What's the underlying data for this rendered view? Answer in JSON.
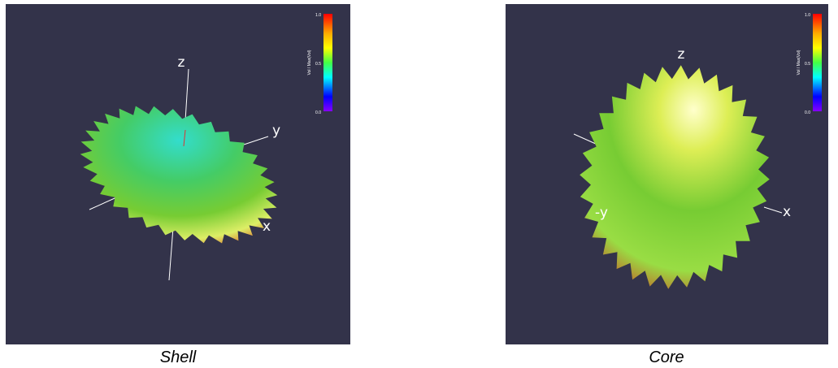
{
  "panels": [
    {
      "axis_labels": [
        "z",
        "y",
        "x"
      ],
      "colorbar": {
        "label": "Vol / Max(Vol)",
        "ticks": [
          "1.0",
          "0.5",
          "0.0"
        ]
      },
      "caption": "Shell"
    },
    {
      "axis_labels": [
        "z",
        "-y",
        "x"
      ],
      "colorbar": {
        "label": "Vol / Max(Vol)",
        "ticks": [
          "1.0",
          "0.5",
          "0.0"
        ]
      },
      "caption": "Core"
    }
  ]
}
